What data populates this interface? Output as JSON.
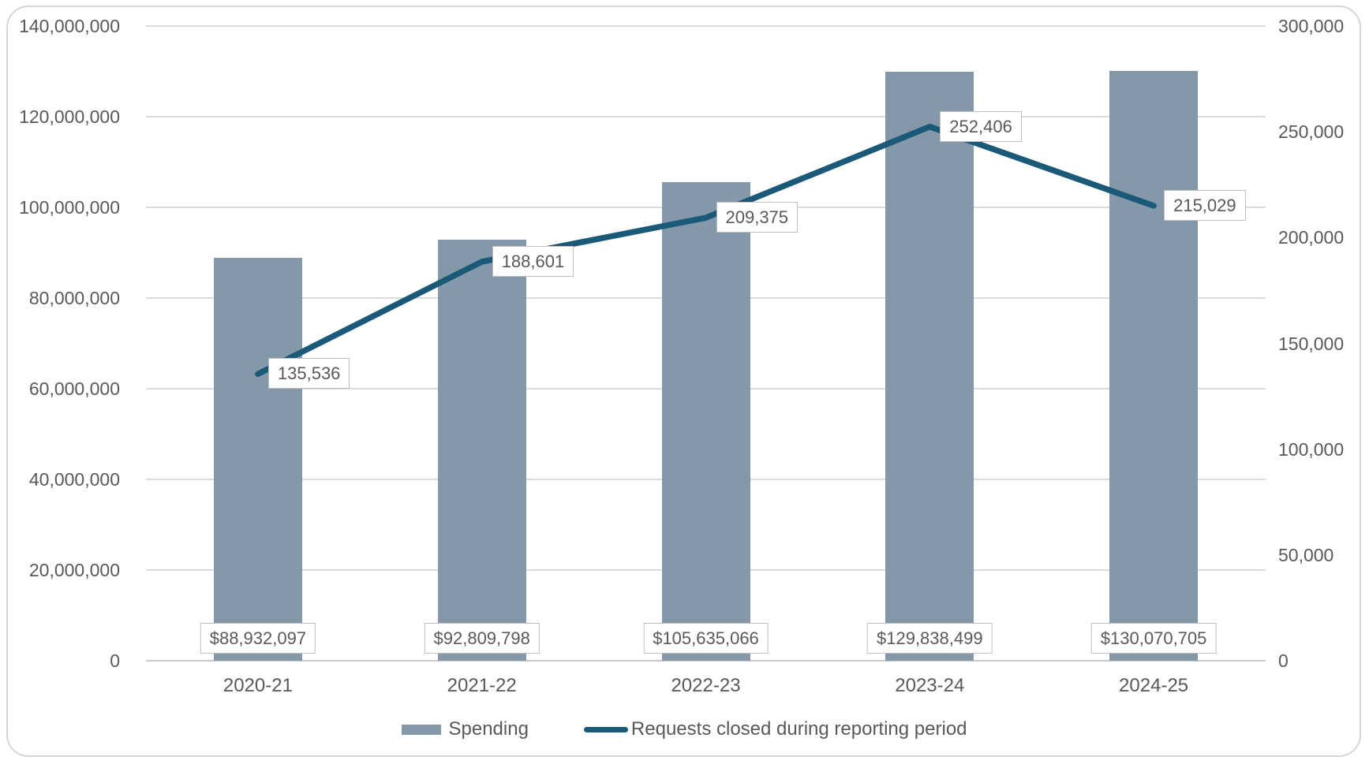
{
  "chart": {
    "background": "#FFFFFF",
    "frame_border_color": "#D6D6D6",
    "bar_color": "#8598AA",
    "line_color": "#1A5A78",
    "grid_color": "#DBDBDB",
    "axis_zero_line_color": "#C9C9C9",
    "text_color": "#595959",
    "label_box_bg": "#FFFFFF",
    "label_box_border": "#BFBFBF"
  },
  "chart_data": {
    "type": "bar+line combo",
    "title": "",
    "categories": [
      "2020-21",
      "2021-22",
      "2022-23",
      "2023-24",
      "2024-25"
    ],
    "series": [
      {
        "name": "Spending",
        "type": "bar",
        "axis": "left",
        "color": "#8598AA",
        "values": [
          88932097,
          92809798,
          105635066,
          129838499,
          130070705
        ],
        "labels": [
          "$88,932,097",
          "$92,809,798",
          "$105,635,066",
          "$129,838,499",
          "$130,070,705"
        ]
      },
      {
        "name": "Requests closed during reporting period",
        "type": "line",
        "axis": "right",
        "color": "#1A5A78",
        "values": [
          135536,
          188601,
          209375,
          252406,
          215029
        ],
        "labels": [
          "135,536",
          "188,601",
          "209,375",
          "252,406",
          "215,029"
        ]
      }
    ],
    "left_axis": {
      "min": 0,
      "max": 140000000,
      "step": 20000000,
      "tick_labels": [
        "0",
        "20,000,000",
        "40,000,000",
        "60,000,000",
        "80,000,000",
        "100,000,000",
        "120,000,000",
        "140,000,000"
      ]
    },
    "right_axis": {
      "min": 0,
      "max": 300000,
      "step": 50000,
      "tick_labels": [
        "0",
        "50,000",
        "100,000",
        "150,000",
        "200,000",
        "250,000",
        "300,000"
      ]
    },
    "grid": true,
    "legend": {
      "position": "bottom",
      "entries": [
        "Spending",
        "Requests closed during reporting period"
      ]
    }
  }
}
